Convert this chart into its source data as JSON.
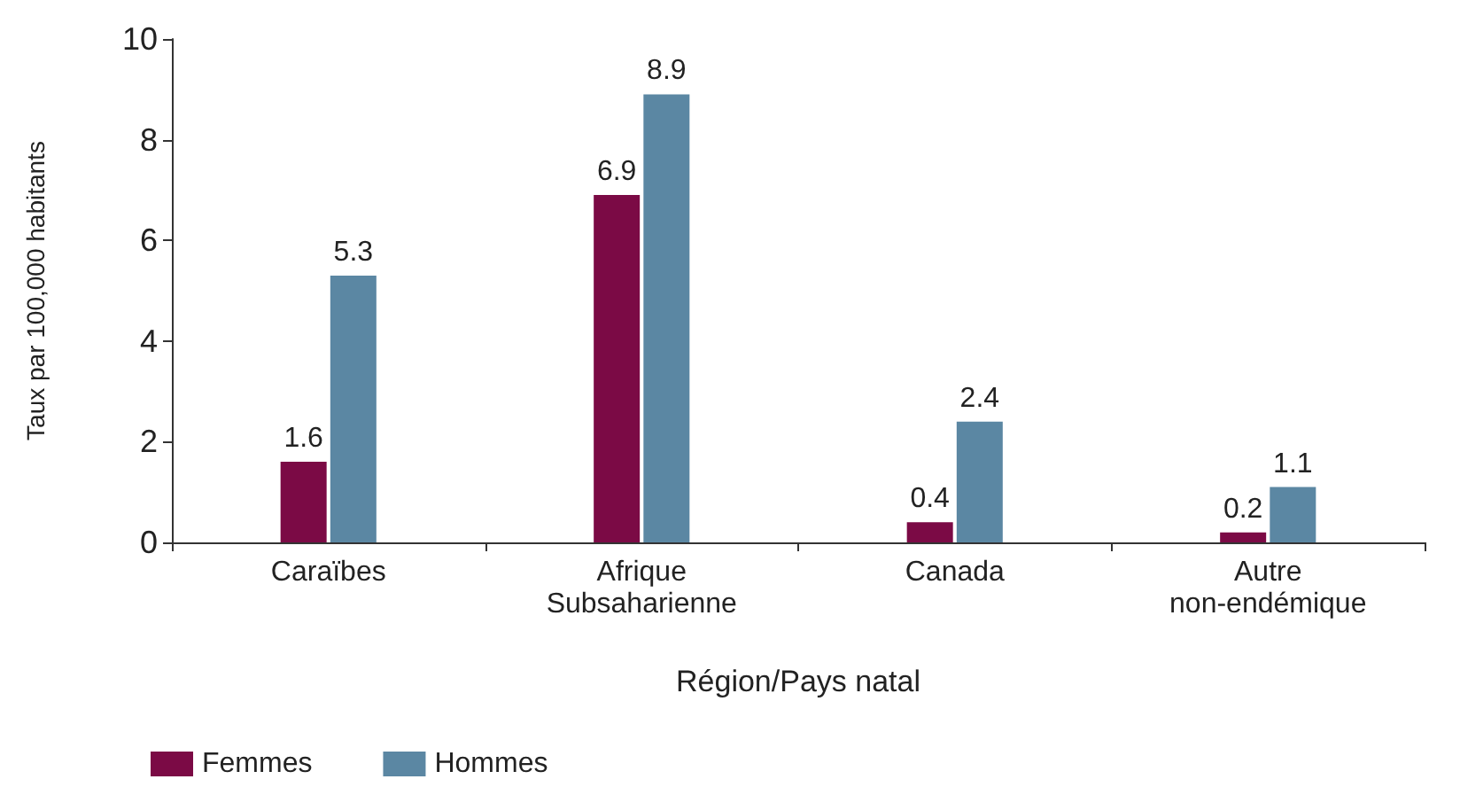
{
  "chart_data": {
    "type": "bar",
    "xlabel": "Région/Pays natal",
    "ylabel": "Taux par 100,000 habitants",
    "categories": [
      "Caraïbes",
      "Afrique\nSubsaharienne",
      "Canada",
      "Autre\nnon-endémique"
    ],
    "series": [
      {
        "name": "Femmes",
        "color": "#7b0a45",
        "values": [
          1.6,
          6.9,
          0.4,
          0.2
        ]
      },
      {
        "name": "Hommes",
        "color": "#5b87a3",
        "values": [
          5.3,
          8.9,
          2.4,
          1.1
        ]
      }
    ],
    "ylim": [
      0,
      10
    ],
    "yticks": [
      0,
      2,
      4,
      6,
      8,
      10
    ],
    "grid": false,
    "legend": "bottom left",
    "data_labels": true
  }
}
